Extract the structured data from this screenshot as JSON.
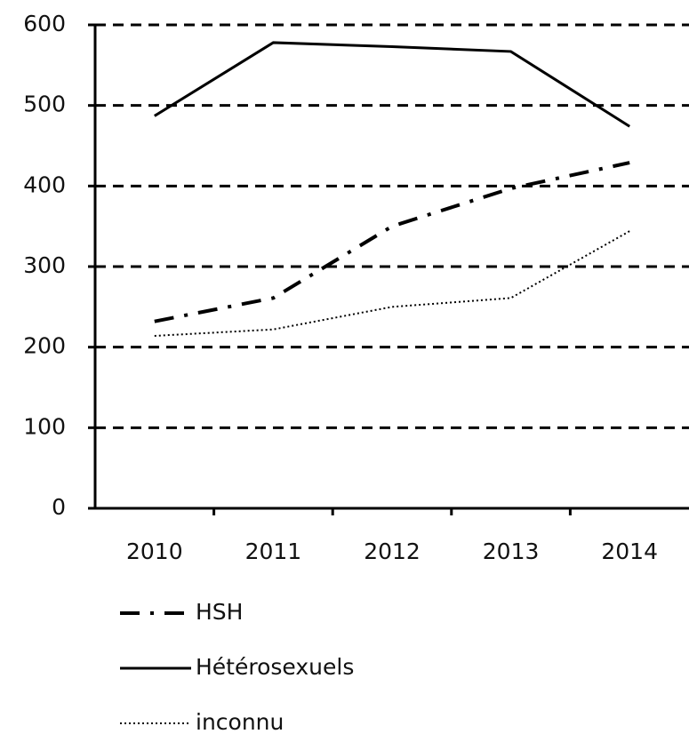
{
  "chart_data": {
    "type": "line",
    "categories": [
      "2010",
      "2011",
      "2012",
      "2013",
      "2014"
    ],
    "series": [
      {
        "name": "HSH",
        "color": "#000000",
        "dash": "dashdot",
        "values": [
          232,
          261,
          350,
          397,
          429
        ]
      },
      {
        "name": "Hétérosexuels",
        "color": "#000000",
        "dash": "solid",
        "values": [
          487,
          578,
          573,
          567,
          474
        ]
      },
      {
        "name": "inconnu",
        "color": "#000000",
        "dash": "dotted",
        "values": [
          214,
          222,
          250,
          261,
          344
        ]
      }
    ],
    "ylim": [
      0,
      600
    ],
    "yticks": [
      0,
      100,
      200,
      300,
      400,
      500,
      600
    ],
    "grid": true,
    "legend": "bottom"
  }
}
